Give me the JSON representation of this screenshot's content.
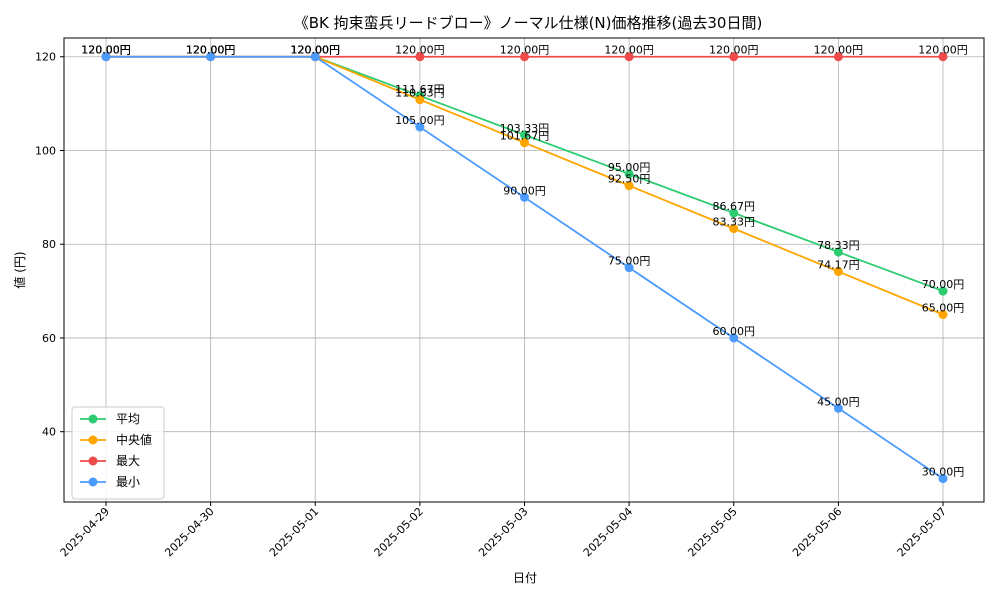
{
  "chart_data": {
    "type": "line",
    "title": "《BK 拘束蛮兵リードブロー》ノーマル仕様(N)価格推移(過去30日間)",
    "xlabel": "日付",
    "ylabel": "値 (円)",
    "categories": [
      "2025-04-29",
      "2025-04-30",
      "2025-05-01",
      "2025-05-02",
      "2025-05-03",
      "2025-05-04",
      "2025-05-05",
      "2025-05-06",
      "2025-05-07"
    ],
    "ylim": [
      25,
      124
    ],
    "yticks": [
      40,
      60,
      80,
      100,
      120
    ],
    "grid": true,
    "legend_position": "lower-left",
    "value_suffix": "円",
    "series": [
      {
        "name": "平均",
        "color": "#2ecc71",
        "values": [
          120.0,
          120.0,
          120.0,
          111.67,
          103.33,
          95.0,
          86.67,
          78.33,
          70.0
        ]
      },
      {
        "name": "中央値",
        "color": "#ffa500",
        "values": [
          120.0,
          120.0,
          120.0,
          110.83,
          101.67,
          92.5,
          83.33,
          74.17,
          65.0
        ]
      },
      {
        "name": "最大",
        "color": "#f04a4a",
        "values": [
          120.0,
          120.0,
          120.0,
          120.0,
          120.0,
          120.0,
          120.0,
          120.0,
          120.0
        ]
      },
      {
        "name": "最小",
        "color": "#4c9bff",
        "values": [
          120.0,
          120.0,
          120.0,
          105.0,
          90.0,
          75.0,
          60.0,
          45.0,
          30.0
        ]
      }
    ]
  }
}
